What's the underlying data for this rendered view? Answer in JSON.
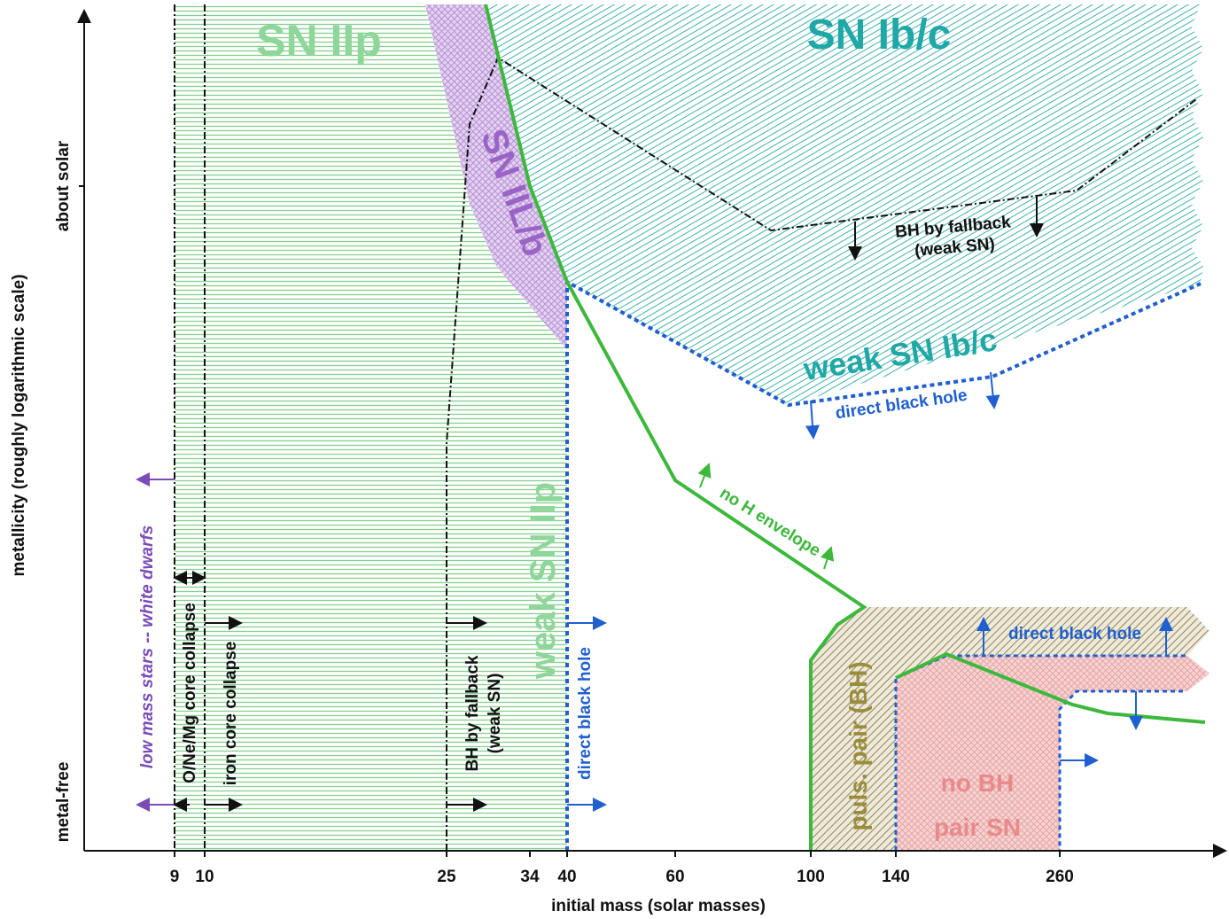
{
  "x_axis": {
    "label": "initial mass (solar masses)",
    "ticks": [
      "9",
      "10",
      "25",
      "34",
      "40",
      "60",
      "100",
      "140",
      "260"
    ]
  },
  "y_axis": {
    "label": "metallicity (roughly logarithmic scale)",
    "ticks": [
      "about solar",
      "metal-free"
    ]
  },
  "regions": {
    "sn_iip": "SN IIp",
    "sn_ibc": "SN Ib/c",
    "sn_iilb": "SN IIL/b",
    "weak_sn_ibc": "weak SN Ib/c",
    "weak_sn_iip": "weak SN IIp",
    "puls_pair": "puls. pair (BH)",
    "no_bh": "no BH",
    "pair_sn": "pair SN"
  },
  "boundaries": {
    "low_mass": "low mass stars -- white dwarfs",
    "onemg": "O/Ne/Mg core collapse",
    "iron": "iron core collapse",
    "fallback_vertical": [
      "BH by fallback",
      "(weak SN)"
    ],
    "direct_bh_vertical": "direct black hole",
    "fallback_top": [
      "BH by fallback",
      "(weak SN)"
    ],
    "direct_bh_top": "direct black hole",
    "no_h_envelope": "no H envelope",
    "direct_bh_pair": "direct black hole"
  }
}
